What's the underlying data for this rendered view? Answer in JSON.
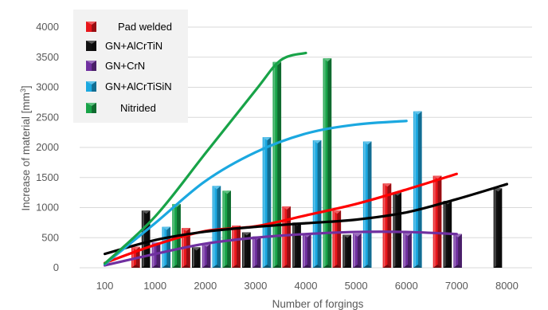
{
  "chart_data": {
    "type": "bar",
    "title": "",
    "xlabel": "Number of forgings",
    "ylabel_main": "Increase of material  [mm",
    "ylabel_sup": "3",
    "ylabel_end": "]",
    "categories": [
      "100",
      "1000",
      "2000",
      "3000",
      "4000",
      "5000",
      "6000",
      "7000",
      "8000"
    ],
    "ylim": [
      0,
      4000
    ],
    "yticks": [
      "0",
      "500",
      "1000",
      "1500",
      "2000",
      "2500",
      "3000",
      "3500",
      "4000"
    ],
    "grid": "horizontal",
    "legend_position": "top-left",
    "series": [
      {
        "name": "Pad welded",
        "color": "#e8161b",
        "values": [
          null,
          350,
          660,
          700,
          1020,
          950,
          1400,
          1530,
          null
        ]
      },
      {
        "name": "GN+AlCrTiN",
        "color": "#111111",
        "values": [
          null,
          950,
          340,
          590,
          750,
          550,
          1250,
          1110,
          1320
        ]
      },
      {
        "name": "GN+CrN",
        "color": "#7030a0",
        "values": [
          null,
          420,
          400,
          520,
          560,
          570,
          580,
          560,
          null
        ]
      },
      {
        "name": "GN+AlCrTiSiN",
        "color": "#1ba8e0",
        "values": [
          null,
          680,
          1360,
          2170,
          2120,
          2100,
          2600,
          null,
          null
        ]
      },
      {
        "name": "Nitrided",
        "color": "#18a348",
        "values": [
          null,
          1060,
          1280,
          3420,
          3480,
          null,
          null,
          null,
          null
        ]
      }
    ],
    "trendlines": [
      {
        "series": "Pad welded",
        "color": "#ff0000",
        "points": [
          [
            0,
            80
          ],
          [
            1,
            380
          ],
          [
            2,
            610
          ],
          [
            3,
            690
          ],
          [
            4,
            870
          ],
          [
            5,
            1060
          ],
          [
            6,
            1300
          ],
          [
            7,
            1560
          ]
        ]
      },
      {
        "series": "GN+AlCrTiN",
        "color": "#000000",
        "points": [
          [
            0,
            230
          ],
          [
            1,
            460
          ],
          [
            2,
            600
          ],
          [
            3,
            680
          ],
          [
            4,
            740
          ],
          [
            5,
            800
          ],
          [
            6,
            920
          ],
          [
            7,
            1140
          ],
          [
            8,
            1390
          ]
        ]
      },
      {
        "series": "GN+CrN",
        "color": "#7030a0",
        "points": [
          [
            0,
            40
          ],
          [
            1,
            230
          ],
          [
            2,
            400
          ],
          [
            3,
            500
          ],
          [
            4,
            560
          ],
          [
            5,
            595
          ],
          [
            6,
            595
          ],
          [
            7,
            560
          ]
        ]
      },
      {
        "series": "GN+AlCrTiSiN",
        "color": "#1ba8e0",
        "points": [
          [
            0,
            60
          ],
          [
            1,
            740
          ],
          [
            2,
            1440
          ],
          [
            3,
            1920
          ],
          [
            4,
            2230
          ],
          [
            5,
            2380
          ],
          [
            6,
            2440
          ]
        ]
      },
      {
        "series": "Nitrided",
        "color": "#18a348",
        "points": [
          [
            0,
            70
          ],
          [
            1,
            850
          ],
          [
            2,
            1900
          ],
          [
            3,
            2950
          ],
          [
            3.5,
            3450
          ],
          [
            4,
            3570
          ]
        ]
      }
    ]
  }
}
